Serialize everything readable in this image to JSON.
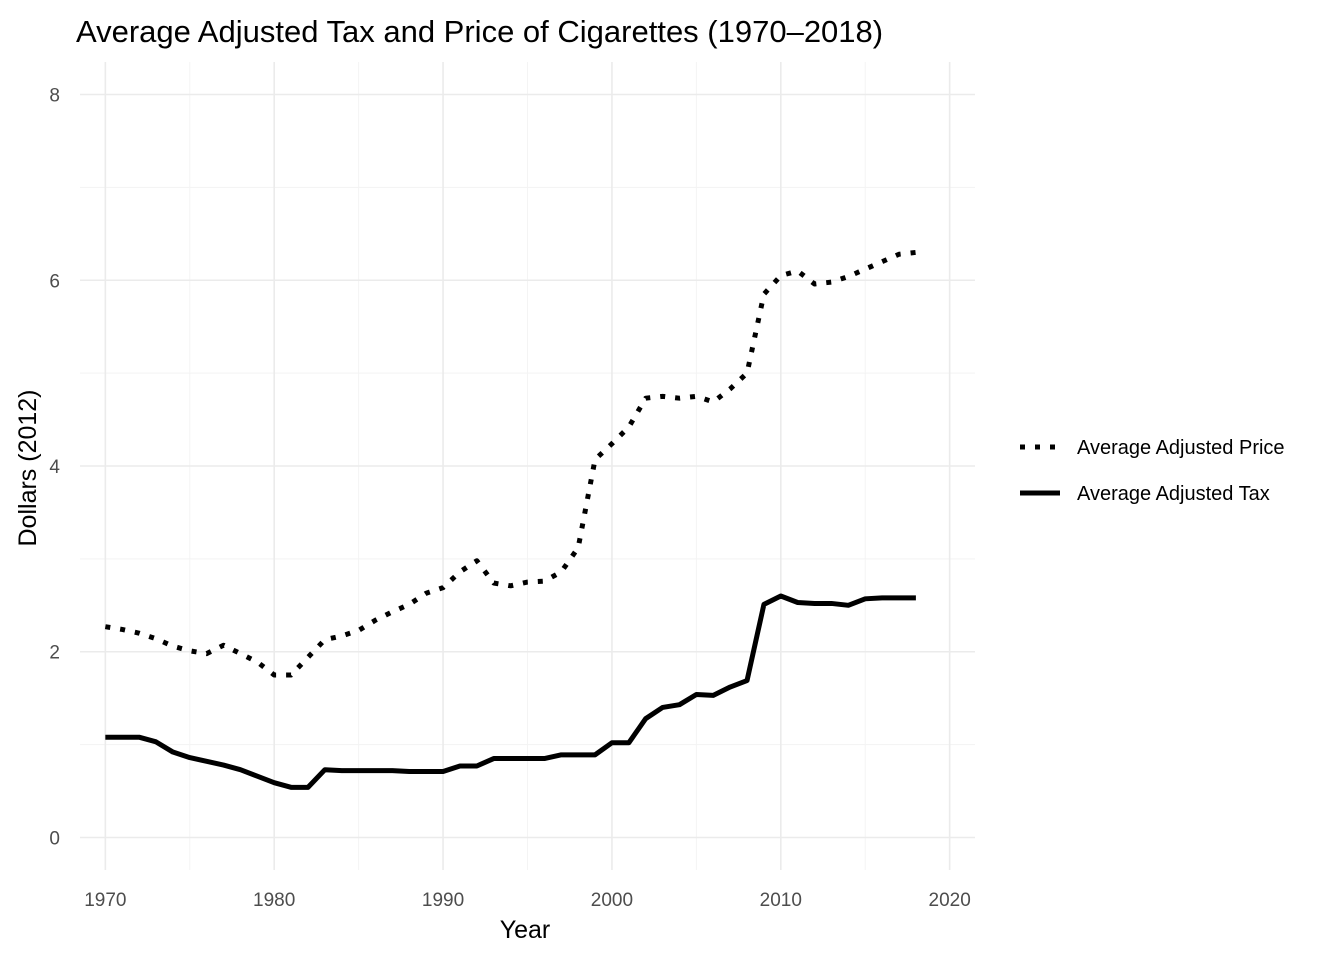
{
  "chart_data": {
    "type": "line",
    "title": "Average Adjusted Tax and Price of Cigarettes (1970–2018)",
    "xlabel": "Year",
    "ylabel": "Dollars (2012)",
    "xlim": [
      1968.5,
      2021.5
    ],
    "ylim": [
      -0.35,
      8.35
    ],
    "x_ticks": [
      1970,
      1980,
      1990,
      2000,
      2010,
      2020
    ],
    "y_ticks": [
      0,
      2,
      4,
      6,
      8
    ],
    "grid": true,
    "legend_position": "right",
    "x": [
      1970,
      1971,
      1972,
      1973,
      1974,
      1975,
      1976,
      1977,
      1978,
      1979,
      1980,
      1981,
      1982,
      1983,
      1984,
      1985,
      1986,
      1987,
      1988,
      1989,
      1990,
      1991,
      1992,
      1993,
      1994,
      1995,
      1996,
      1997,
      1998,
      1999,
      2000,
      2001,
      2002,
      2003,
      2004,
      2005,
      2006,
      2007,
      2008,
      2009,
      2010,
      2011,
      2012,
      2013,
      2014,
      2015,
      2016,
      2017,
      2018
    ],
    "series": [
      {
        "name": "Average Adjusted Price",
        "style": "dotted",
        "color": "#000000",
        "values": [
          2.27,
          2.24,
          2.2,
          2.14,
          2.06,
          2.01,
          1.98,
          2.07,
          1.98,
          1.89,
          1.75,
          1.75,
          1.94,
          2.13,
          2.17,
          2.23,
          2.34,
          2.43,
          2.51,
          2.63,
          2.69,
          2.86,
          2.98,
          2.74,
          2.71,
          2.75,
          2.76,
          2.86,
          3.12,
          4.07,
          4.24,
          4.42,
          4.73,
          4.75,
          4.73,
          4.75,
          4.69,
          4.83,
          5.0,
          5.85,
          6.05,
          6.1,
          5.96,
          5.98,
          6.04,
          6.12,
          6.2,
          6.28,
          6.3
        ]
      },
      {
        "name": "Average Adjusted Tax",
        "style": "solid",
        "color": "#000000",
        "values": [
          1.08,
          1.08,
          1.08,
          1.03,
          0.92,
          0.86,
          0.82,
          0.78,
          0.73,
          0.66,
          0.59,
          0.54,
          0.54,
          0.73,
          0.72,
          0.72,
          0.72,
          0.72,
          0.71,
          0.71,
          0.71,
          0.77,
          0.77,
          0.85,
          0.85,
          0.85,
          0.85,
          0.89,
          0.89,
          0.89,
          1.02,
          1.02,
          1.28,
          1.4,
          1.43,
          1.54,
          1.53,
          1.62,
          1.69,
          2.51,
          2.6,
          2.53,
          2.52,
          2.52,
          2.5,
          2.57,
          2.58,
          2.58,
          2.58
        ]
      }
    ]
  }
}
